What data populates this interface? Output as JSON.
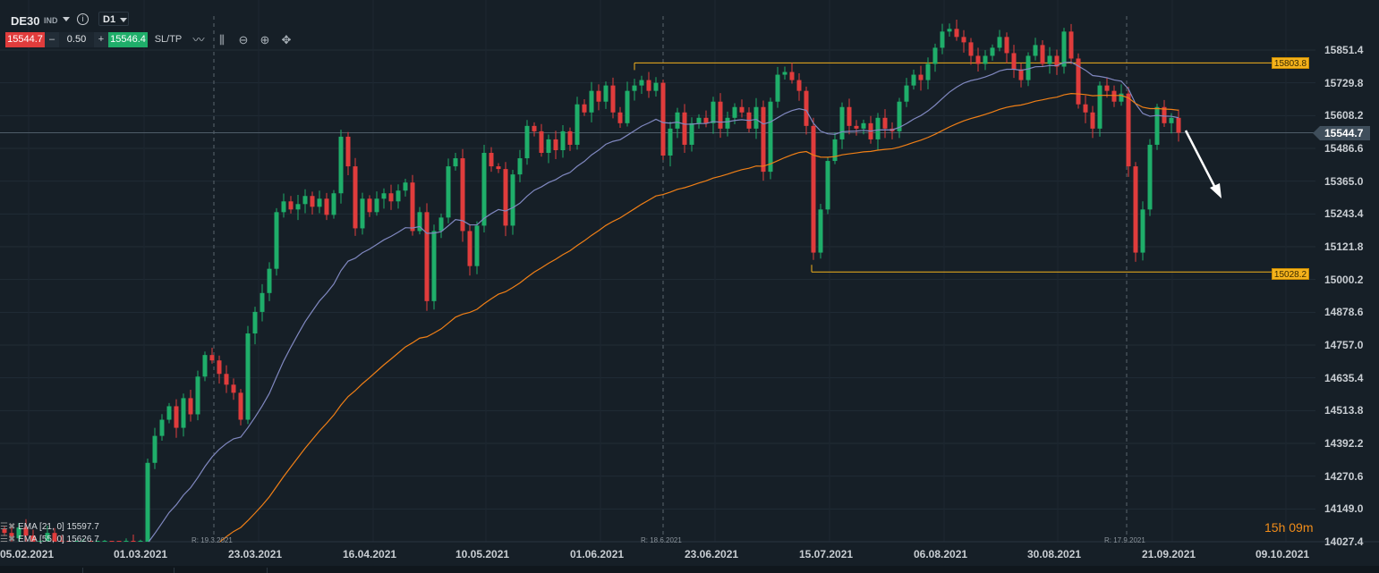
{
  "header": {
    "symbol": "DE30",
    "market": "IND",
    "timeframe": "D1",
    "sell_price": "15544.7",
    "buy_price": "15546.4",
    "quantity": "0.50",
    "minus": "–",
    "plus": "+",
    "sltp": "SL/TP",
    "info": "i"
  },
  "tools": [
    "line-chart-icon",
    "candlestick-icon",
    "zoom-out-icon",
    "zoom-in-icon",
    "crosshair-move-icon"
  ],
  "legend": [
    {
      "label": "EMA [21, 0] 15597.7",
      "color": "#8088c0"
    },
    {
      "label": "EMA [55, 0] 15626.7",
      "color": "#f07f16"
    }
  ],
  "countdown": "15h 09m",
  "colors": {
    "bull": "#1fae6a",
    "bear": "#e03c3c",
    "level": "#f4b21c",
    "ema21": "#8088c0",
    "ema55": "#f07f16",
    "background": "#161f27"
  },
  "chart_data": {
    "type": "candlestick",
    "symbol": "DE30",
    "y_ticks": [
      "15851.4",
      "15729.8",
      "15608.2",
      "15486.6",
      "15365.0",
      "15243.4",
      "15121.8",
      "15000.2",
      "14878.6",
      "14757.0",
      "14635.4",
      "14513.8",
      "14392.2",
      "14270.6",
      "14149.0",
      "14027.4"
    ],
    "ylim": [
      14027.4,
      15851.4
    ],
    "x_ticks": [
      "05.02.2021",
      "01.03.2021",
      "23.03.2021",
      "16.04.2021",
      "10.05.2021",
      "01.06.2021",
      "23.06.2021",
      "15.07.2021",
      "06.08.2021",
      "30.08.2021",
      "21.09.2021",
      "09.10.2021"
    ],
    "rollover_markers": [
      "R: 19.3.2021",
      "R: 18.6.2021",
      "R: 17.9.2021"
    ],
    "current_price": "15544.7",
    "levels": [
      "15803.8",
      "15028.2"
    ],
    "closes": [
      14060,
      14040,
      14080,
      14050,
      14010,
      14030,
      14060,
      14020,
      14000,
      13980,
      13990,
      14010,
      13970,
      13990,
      14010,
      14000,
      13990,
      14020,
      14000,
      14010,
      14320,
      14420,
      14480,
      14530,
      14450,
      14560,
      14500,
      14640,
      14720,
      14700,
      14650,
      14610,
      14580,
      14480,
      14800,
      14880,
      14950,
      15040,
      15250,
      15290,
      15260,
      15280,
      15310,
      15270,
      15300,
      15240,
      15320,
      15530,
      15420,
      15190,
      15300,
      15250,
      15300,
      15320,
      15290,
      15330,
      15360,
      15180,
      15250,
      14920,
      15180,
      15230,
      15420,
      15450,
      15180,
      15050,
      15200,
      15470,
      15420,
      15410,
      15200,
      15390,
      15450,
      15570,
      15550,
      15470,
      15520,
      15480,
      15550,
      15500,
      15650,
      15620,
      15700,
      15660,
      15720,
      15620,
      15580,
      15700,
      15720,
      15740,
      15700,
      15730,
      15460,
      15560,
      15620,
      15500,
      15580,
      15600,
      15580,
      15660,
      15560,
      15600,
      15640,
      15620,
      15560,
      15640,
      15400,
      15660,
      15760,
      15770,
      15740,
      15700,
      15570,
      15100,
      15260,
      15440,
      15520,
      15640,
      15570,
      15560,
      15580,
      15520,
      15600,
      15560,
      15550,
      15660,
      15720,
      15760,
      15740,
      15800,
      15860,
      15920,
      15930,
      15900,
      15880,
      15830,
      15800,
      15830,
      15860,
      15900,
      15840,
      15780,
      15740,
      15830,
      15870,
      15800,
      15830,
      15790,
      15920,
      15820,
      15650,
      15620,
      15560,
      15720,
      15700,
      15660,
      15690,
      15420,
      15100,
      15260,
      15500,
      15640,
      15580,
      15600,
      15544.7
    ],
    "indicators": [
      {
        "name": "EMA [21, 0]",
        "last": "15597.7"
      },
      {
        "name": "EMA [55, 0]",
        "last": "15626.7"
      }
    ]
  }
}
